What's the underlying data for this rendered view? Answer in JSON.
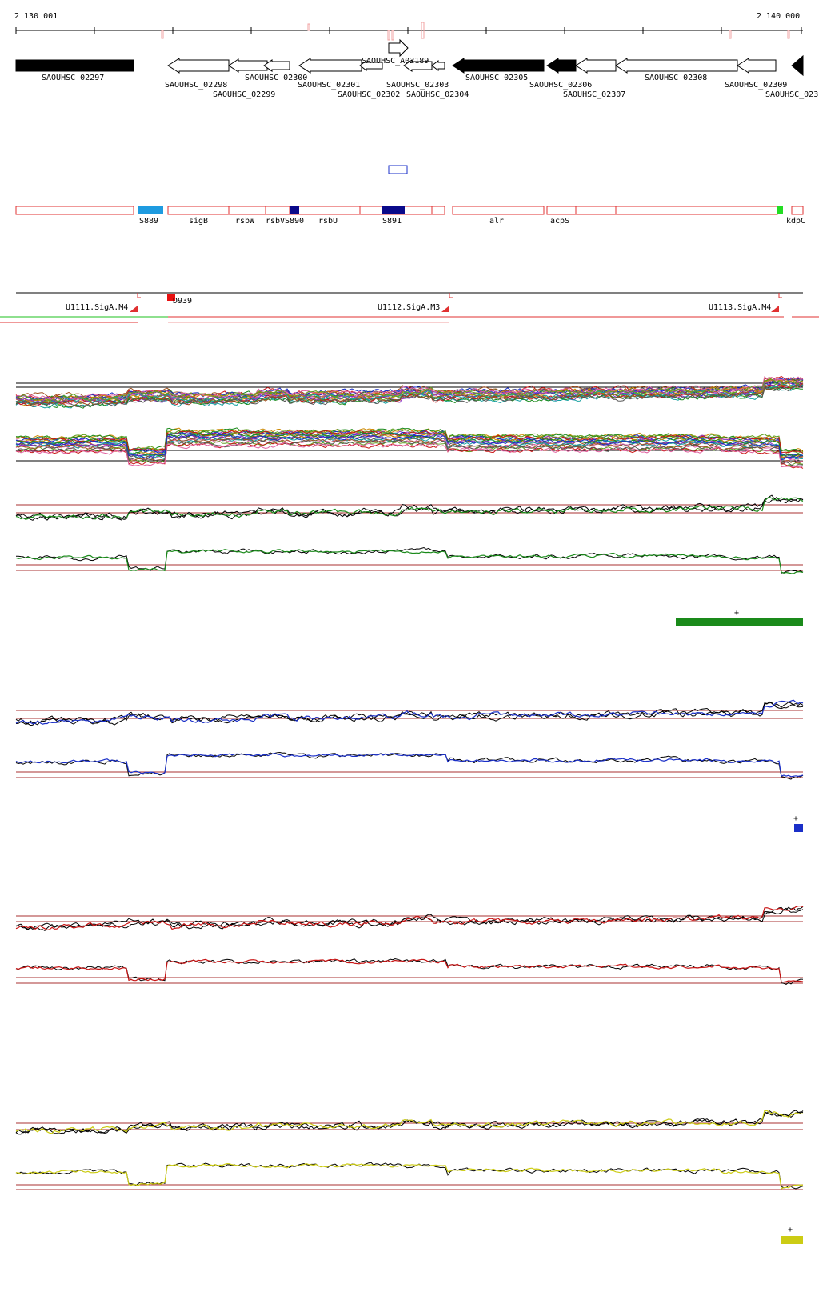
{
  "coordinates": {
    "start": "2 130 001",
    "end": "2 140 000"
  },
  "genes": [
    "SAOUHSC_02297",
    "SAOUHSC_02298",
    "SAOUHSC_02299",
    "SAOUHSC_02300",
    "SAOUHSC_02301",
    "SAOUHSC_02302",
    "SAOUHSC_A02189",
    "SAOUHSC_02303",
    "SAOUHSC_02304",
    "SAOUHSC_02305",
    "SAOUHSC_02306",
    "SAOUHSC_02307",
    "SAOUHSC_02308",
    "SAOUHSC_02309",
    "SAOUHSC_023"
  ],
  "annotations": [
    "S889",
    "sigB",
    "rsbW",
    "rsbV",
    "S890",
    "rsbU",
    "S891",
    "alr",
    "acpS",
    "kdpC"
  ],
  "promoters": [
    "U1111.SigA.M4",
    "D939",
    "U1112.SigA.M3",
    "U1113.SigA.M4"
  ],
  "strand_markers": [
    "+",
    "+",
    "+"
  ],
  "colors": {
    "green": "#1a8a1a",
    "blue": "#1a2fc8",
    "red": "#c81414",
    "yellow": "#cccc14",
    "annotation_outline": "#e03030",
    "light_blue": "#1e9be0",
    "navy": "#0a0a8a"
  }
}
